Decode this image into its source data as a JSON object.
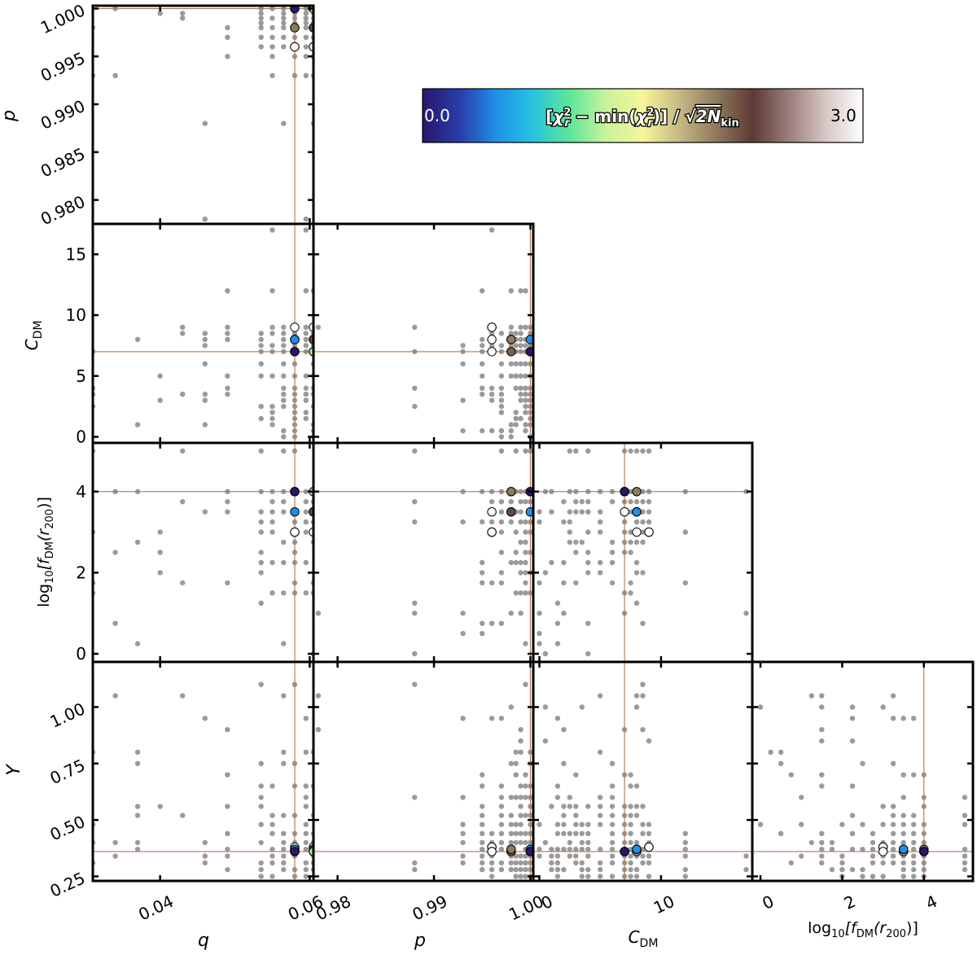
{
  "chart_data": {
    "type": "scatter",
    "title": "",
    "layout": "corner-plot",
    "parameters": [
      {
        "key": "q",
        "label": "q",
        "range": [
          0.031,
          0.0605
        ]
      },
      {
        "key": "p",
        "label": "p",
        "range": [
          0.9775,
          1.0003
        ]
      },
      {
        "key": "cdm",
        "label": "C_DM",
        "range": [
          -0.5,
          17.5
        ]
      },
      {
        "key": "fdm",
        "label": "log10[f_DM(r200)]",
        "range": [
          -0.2,
          5.2
        ]
      },
      {
        "key": "y",
        "label": "Y",
        "range": [
          0.23,
          1.2
        ]
      }
    ],
    "axis_labels": {
      "q": "q",
      "p": "p",
      "cdm": "C",
      "cdm_sub": "DM",
      "y": "Y",
      "fdm_prefix": "log",
      "fdm_base": "10",
      "fdm_mid": "[f",
      "fdm_mid_sub": "DM",
      "fdm_paren": "(r",
      "fdm_paren_sub": "200",
      "fdm_end": ")]"
    },
    "ticks": {
      "q": [
        0.04,
        0.06
      ],
      "q_labels": [
        "0.04",
        "0.06"
      ],
      "p_x": [
        0.98,
        0.99,
        1.0
      ],
      "p_x_labels": [
        "0.98",
        "0.99",
        "1.00"
      ],
      "p_y": [
        0.98,
        0.985,
        0.99,
        0.995,
        1.0
      ],
      "p_y_labels": [
        "0.980",
        "0.985",
        "0.990",
        "0.995",
        "1.000"
      ],
      "cdm_x": [
        0,
        10
      ],
      "cdm_x_labels": [
        "0",
        "10"
      ],
      "cdm_y": [
        0,
        5,
        10,
        15
      ],
      "cdm_y_labels": [
        "0",
        "5",
        "10",
        "15"
      ],
      "fdm_x": [
        0,
        2,
        4
      ],
      "fdm_x_labels": [
        "0",
        "2",
        "4"
      ],
      "fdm_y": [
        0,
        2,
        4
      ],
      "fdm_y_labels": [
        "0",
        "2",
        "4"
      ],
      "y": [
        0.25,
        0.5,
        0.75,
        1.0
      ],
      "y_labels": [
        "0.25",
        "0.50",
        "0.75",
        "1.00"
      ]
    },
    "best_fit": {
      "q": 0.058,
      "p": 1.0,
      "cdm": 7,
      "fdm": 4,
      "y": 0.36
    },
    "colorbar": {
      "label": "[χ²_r − min(χ²_r)] / √(2N_kin)",
      "label_parts": {
        "open": "[",
        "chi": "χ",
        "sup": "2",
        "sub": "r",
        "minus": " − min(",
        "close": ")] / ",
        "sqrt": "2N",
        "sqrt_sub": "kin"
      },
      "min": 0.0,
      "max": 3.0,
      "min_label": "0.0",
      "max_label": "3.0",
      "colormap": [
        "#26186b",
        "#2a3ca8",
        "#1f8fe8",
        "#27c3e0",
        "#5ce69a",
        "#c9f39a",
        "#f5f59a",
        "#c7b884",
        "#8f7a5c",
        "#5c3a36",
        "#9c7f7c",
        "#d7c8c6",
        "#ffffff"
      ]
    },
    "highlighted_models": [
      {
        "q": 0.058,
        "p": 1.0,
        "cdm": 7,
        "fdm": 4,
        "y": 0.36,
        "value": 0.0
      },
      {
        "q": 0.058,
        "p": 1.0,
        "cdm": 8,
        "fdm": 3.5,
        "y": 0.37,
        "value": 0.5
      },
      {
        "q": 0.0605,
        "p": 1.0,
        "cdm": 7,
        "fdm": 4,
        "y": 0.36,
        "value": 1.2
      },
      {
        "q": 0.058,
        "p": 0.998,
        "cdm": 8,
        "fdm": 4,
        "y": 0.37,
        "value": 2.0
      },
      {
        "q": 0.0605,
        "p": 0.998,
        "cdm": 8,
        "fdm": 3.5,
        "y": 0.37,
        "value": 2.3
      },
      {
        "q": 0.058,
        "p": 0.998,
        "cdm": 7,
        "fdm": 4,
        "y": 0.36,
        "value": 2.1
      },
      {
        "q": 0.0605,
        "p": 0.998,
        "cdm": 8,
        "fdm": 3.5,
        "y": 0.36,
        "value": 2.6
      },
      {
        "q": 0.058,
        "p": 0.996,
        "cdm": 9,
        "fdm": 3,
        "y": 0.38,
        "value": 3.0
      },
      {
        "q": 0.0605,
        "p": 0.996,
        "cdm": 9,
        "fdm": 3,
        "y": 0.38,
        "value": 3.0
      },
      {
        "q": 0.058,
        "p": 0.996,
        "cdm": 8,
        "fdm": 3,
        "y": 0.36,
        "value": 3.0
      },
      {
        "q": 0.0605,
        "p": 0.996,
        "cdm": 7,
        "fdm": 3.5,
        "y": 0.36,
        "value": 3.0
      }
    ],
    "sampled_models": {
      "color": "#9a9a9a",
      "q": [
        0.031,
        0.034,
        0.037,
        0.04,
        0.043,
        0.046,
        0.049,
        0.0535,
        0.055,
        0.0565,
        0.058,
        0.0595,
        0.0605
      ],
      "p": [
        0.978,
        0.988,
        0.993,
        0.995,
        0.996,
        0.997,
        0.998,
        0.9985,
        0.999,
        0.9995,
        1.0
      ],
      "cdm": [
        0,
        0.5,
        1,
        1.5,
        2,
        2.5,
        3,
        3.5,
        4,
        5,
        6,
        7,
        7.5,
        8,
        8.5,
        9,
        12,
        17
      ],
      "fdm": [
        0,
        0.25,
        0.5,
        0.75,
        1,
        1.25,
        1.5,
        1.75,
        2,
        2.25,
        2.5,
        2.75,
        3,
        3.25,
        3.5,
        3.75,
        4,
        5
      ],
      "y": [
        0.25,
        0.28,
        0.31,
        0.34,
        0.37,
        0.4,
        0.44,
        0.48,
        0.52,
        0.56,
        0.6,
        0.65,
        0.7,
        0.75,
        0.8,
        0.85,
        0.9,
        0.95,
        1.0,
        1.05,
        1.1
      ]
    }
  }
}
